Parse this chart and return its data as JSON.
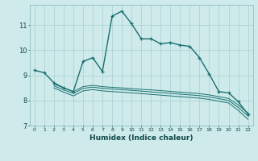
{
  "xlabel": "Humidex (Indice chaleur)",
  "bg_color": "#ceeaea",
  "grid_color": "#add4d4",
  "line_color": "#1a7070",
  "xlim": [
    -0.5,
    22.5
  ],
  "ylim": [
    7,
    11.8
  ],
  "yticks": [
    7,
    8,
    9,
    10,
    11
  ],
  "xticks": [
    0,
    1,
    2,
    3,
    4,
    5,
    6,
    7,
    8,
    9,
    10,
    11,
    12,
    13,
    14,
    15,
    16,
    17,
    18,
    19,
    20,
    21,
    22
  ],
  "series1_x": [
    0,
    1,
    2,
    3,
    4,
    5,
    6,
    7,
    8,
    9,
    10,
    11,
    12,
    13,
    14,
    15,
    16,
    17,
    18,
    19,
    20,
    21,
    22
  ],
  "series1_y": [
    9.2,
    9.1,
    8.7,
    8.5,
    8.35,
    9.55,
    9.7,
    9.15,
    11.35,
    11.55,
    11.05,
    10.45,
    10.45,
    10.25,
    10.3,
    10.2,
    10.15,
    9.7,
    9.05,
    8.35,
    8.3,
    7.95,
    7.45
  ],
  "series2_x": [
    2,
    3,
    4,
    5,
    6,
    7,
    8,
    9,
    10,
    11,
    12,
    13,
    14,
    15,
    16,
    17,
    18,
    19,
    20,
    21,
    22
  ],
  "series2_y": [
    8.65,
    8.5,
    8.35,
    8.55,
    8.6,
    8.55,
    8.52,
    8.5,
    8.47,
    8.44,
    8.42,
    8.39,
    8.36,
    8.33,
    8.3,
    8.27,
    8.22,
    8.15,
    8.08,
    7.82,
    7.5
  ],
  "series3_x": [
    2,
    3,
    4,
    5,
    6,
    7,
    8,
    9,
    10,
    11,
    12,
    13,
    14,
    15,
    16,
    17,
    18,
    19,
    20,
    21,
    22
  ],
  "series3_y": [
    8.58,
    8.42,
    8.28,
    8.48,
    8.53,
    8.48,
    8.45,
    8.43,
    8.4,
    8.37,
    8.34,
    8.31,
    8.28,
    8.25,
    8.22,
    8.19,
    8.14,
    8.07,
    8.0,
    7.72,
    7.38
  ],
  "series4_x": [
    2,
    3,
    4,
    5,
    6,
    7,
    8,
    9,
    10,
    11,
    12,
    13,
    14,
    15,
    16,
    17,
    18,
    19,
    20,
    21,
    22
  ],
  "series4_y": [
    8.5,
    8.33,
    8.18,
    8.38,
    8.43,
    8.38,
    8.35,
    8.33,
    8.3,
    8.27,
    8.24,
    8.21,
    8.18,
    8.15,
    8.12,
    8.09,
    8.04,
    7.97,
    7.9,
    7.6,
    7.25
  ]
}
